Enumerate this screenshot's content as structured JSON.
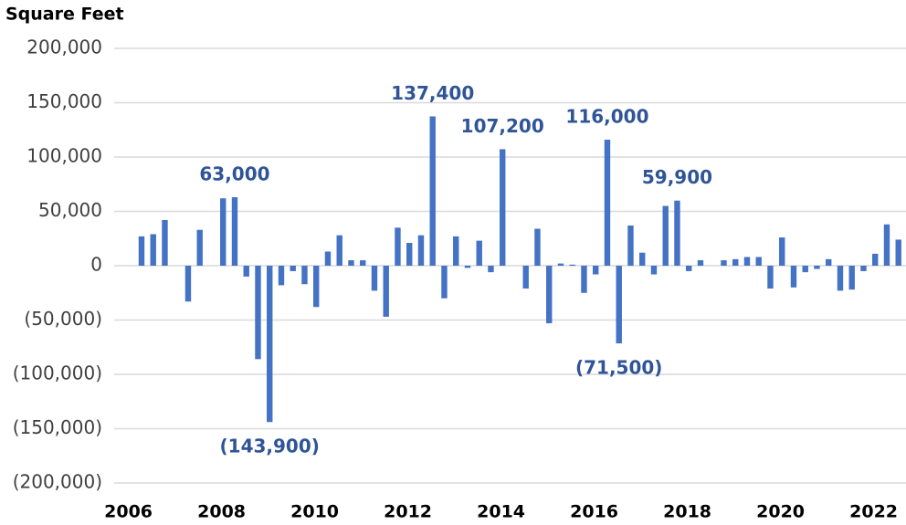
{
  "chart_data": {
    "type": "bar",
    "y_axis_label": "Square Feet",
    "categories": [
      "2006",
      null,
      null,
      null,
      null,
      null,
      null,
      null,
      "2008",
      null,
      null,
      null,
      null,
      null,
      null,
      null,
      "2010",
      null,
      null,
      null,
      null,
      null,
      null,
      null,
      "2012",
      null,
      null,
      null,
      null,
      null,
      null,
      null,
      "2014",
      null,
      null,
      null,
      null,
      null,
      null,
      null,
      "2016",
      null,
      null,
      null,
      null,
      null,
      null,
      null,
      "2018",
      null,
      null,
      null,
      null,
      null,
      null,
      null,
      "2020",
      null,
      null,
      null,
      null,
      null,
      null,
      null,
      "2022",
      null,
      null
    ],
    "values": [
      27000,
      29000,
      42000,
      0,
      -33000,
      33000,
      0,
      62000,
      63000,
      -10000,
      -86000,
      -143900,
      -18000,
      -5000,
      -17000,
      -38000,
      13000,
      28000,
      5000,
      5000,
      -23000,
      -47000,
      35000,
      21000,
      28000,
      137400,
      -30000,
      27000,
      -2000,
      23000,
      -6000,
      107200,
      0,
      -21000,
      34000,
      -53000,
      2000,
      1000,
      -25000,
      -8000,
      116000,
      -71500,
      37000,
      12000,
      -8000,
      55000,
      59900,
      -5000,
      5000,
      0,
      5000,
      6000,
      8000,
      8000,
      -21000,
      26000,
      -20000,
      -6000,
      -3000,
      6000,
      -23000,
      -22000,
      -5000,
      11000,
      38000,
      24000,
      2000
    ],
    "value_labels": [
      null,
      null,
      null,
      null,
      null,
      null,
      null,
      null,
      "63,000",
      null,
      null,
      "(143,900)",
      null,
      null,
      null,
      null,
      null,
      null,
      null,
      null,
      null,
      null,
      null,
      null,
      null,
      "137,400",
      null,
      null,
      null,
      null,
      null,
      "107,200",
      null,
      null,
      null,
      null,
      null,
      null,
      null,
      null,
      "116,000",
      "(71,500)",
      null,
      null,
      null,
      null,
      "59,900",
      null,
      null,
      null,
      null,
      null,
      null,
      null,
      null,
      null,
      null,
      null,
      null,
      null,
      null,
      null,
      null,
      null,
      null,
      null,
      null
    ],
    "color": "#4472c4",
    "label_color": "#2f5597",
    "negative_tick_color": "#e8312b",
    "ylim": [
      -200000,
      200000
    ],
    "yticks": [
      {
        "value": -200000,
        "label": "(200,000)"
      },
      {
        "value": -150000,
        "label": "(150,000)"
      },
      {
        "value": -100000,
        "label": "(100,000)"
      },
      {
        "value": -50000,
        "label": "(50,000)"
      },
      0,
      {
        "value": 50000,
        "label": "50,000"
      },
      {
        "value": 100000,
        "label": "100,000"
      },
      {
        "value": 150000,
        "label": "150,000"
      },
      {
        "value": 200000,
        "label": "200,000"
      }
    ],
    "grid": true
  }
}
